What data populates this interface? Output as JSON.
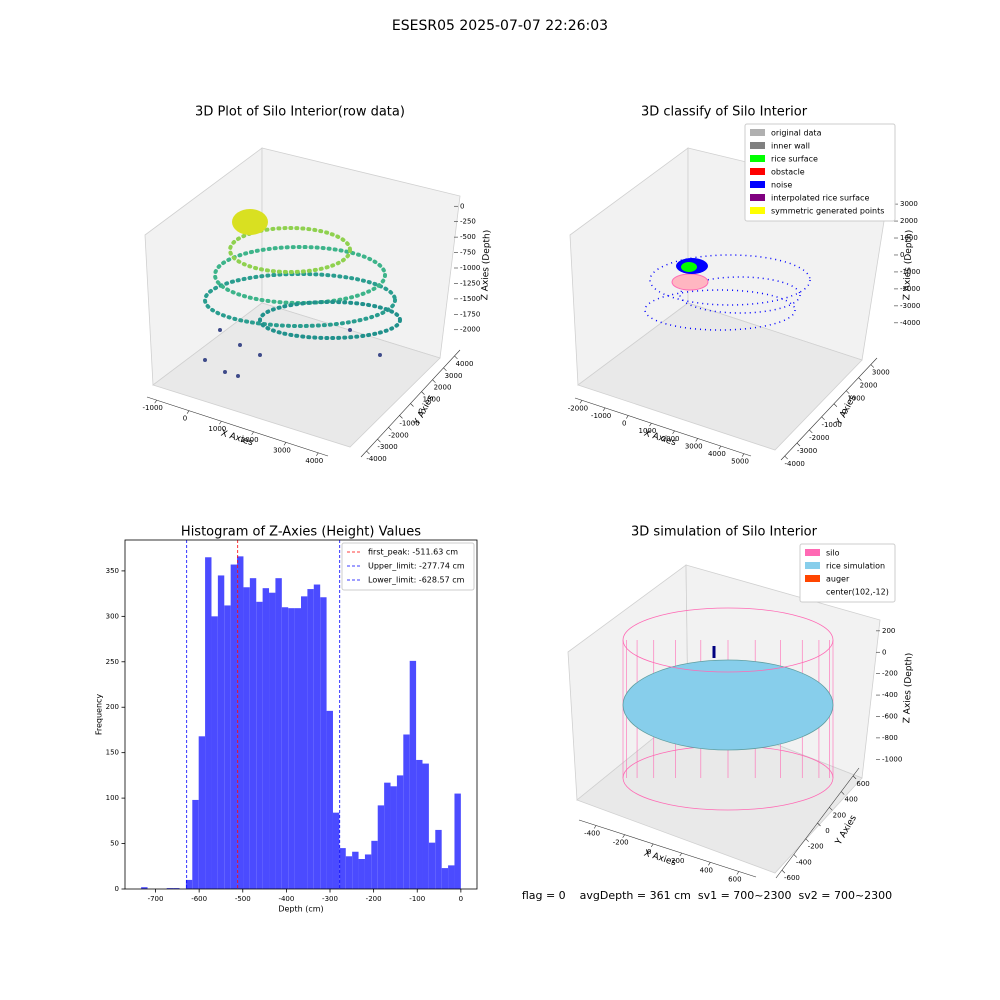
{
  "suptitle": "ESESR05 2025-07-07 22:26:03",
  "footer": "flag = 0    avgDepth = 361 cm  sv1 = 700~2300  sv2 = 700~2300",
  "chart_data": [
    {
      "type": "scatter3d",
      "title": "3D Plot of Silo Interior(row data)",
      "xlabel": "X Axies",
      "ylabel": "Y Axies",
      "zlabel": "Z Axies (Depth)",
      "xlim": [
        -1300,
        4300
      ],
      "xticks": [
        -1000,
        0,
        1000,
        2000,
        3000,
        4000
      ],
      "ylim": [
        -4500,
        4500
      ],
      "yticks": [
        -4000,
        -3000,
        -2000,
        -1000,
        0,
        1000,
        2000,
        3000,
        4000
      ],
      "zlim": [
        -2150,
        150
      ],
      "zticks": [
        -2000,
        -1750,
        -1500,
        -1250,
        -1000,
        -750,
        -500,
        -250,
        0
      ]
    },
    {
      "type": "scatter3d",
      "title": "3D classify of Silo Interior",
      "xlabel": "X Axies",
      "ylabel": "Y Axies",
      "zlabel": "Z Axies (Depth)",
      "xlim": [
        -2300,
        5300
      ],
      "xticks": [
        -2000,
        -1000,
        0,
        1000,
        2000,
        3000,
        4000,
        5000
      ],
      "ylim": [
        -4300,
        3500
      ],
      "yticks": [
        -4000,
        -3000,
        -2000,
        -1000,
        0,
        1000,
        2000,
        3000
      ],
      "zlim": [
        -4600,
        3300
      ],
      "zticks": [
        -4000,
        -3000,
        -2000,
        -1000,
        0,
        1000,
        2000,
        3000
      ],
      "legend": [
        {
          "name": "original data",
          "color": "#b0b0b0"
        },
        {
          "name": "inner wall",
          "color": "#808080"
        },
        {
          "name": "rice surface",
          "color": "#00ff00"
        },
        {
          "name": "obstacle",
          "color": "#ff0000"
        },
        {
          "name": "noise",
          "color": "#0000ff"
        },
        {
          "name": "interpolated rice surface",
          "color": "#800080"
        },
        {
          "name": "symmetric generated points",
          "color": "#ffff00"
        }
      ]
    },
    {
      "type": "histogram",
      "title": "Histogram of Z-Axies (Height) Values",
      "xlabel": "Depth (cm)",
      "ylabel": "Frequency",
      "color": "#4b4bff",
      "bins": [
        -733,
        -718.34,
        -703.68,
        -689.02,
        -674.36,
        -659.7,
        -645.04,
        -630.38,
        -615.72,
        -601.06,
        -586.4,
        -571.74,
        -557.08,
        -542.42,
        -527.76,
        -513.1,
        -498.44,
        -483.78,
        -469.12,
        -454.46,
        -439.8,
        -425.14,
        -410.48,
        -395.82,
        -381.16,
        -366.5,
        -351.84,
        -337.18,
        -322.52,
        -307.86,
        -293.2,
        -278.54,
        -263.88,
        -249.22,
        -234.56,
        -219.9,
        -205.24,
        -190.58,
        -175.92,
        -161.26,
        -146.6,
        -131.94,
        -117.28,
        -102.62,
        -87.96,
        -73.3,
        -58.64,
        -43.98,
        -29.32,
        -14.66,
        0
      ],
      "values": [
        2,
        0,
        0,
        0,
        1,
        1,
        0,
        10,
        98,
        168,
        365,
        300,
        345,
        312,
        357,
        366,
        332,
        342,
        316,
        331,
        326,
        342,
        310,
        309,
        309,
        322,
        330,
        335,
        321,
        196,
        84,
        45,
        36,
        41,
        33,
        38,
        53,
        92,
        117,
        113,
        125,
        170,
        251,
        142,
        138,
        51,
        65,
        23,
        26,
        105
      ],
      "xlim": [
        -770,
        37
      ],
      "xticks": [
        -700,
        -600,
        -500,
        -400,
        -300,
        -200,
        -100,
        0
      ],
      "ylim": [
        0,
        384
      ],
      "yticks": [
        0,
        50,
        100,
        150,
        200,
        250,
        300,
        350
      ],
      "vlines": [
        {
          "name": "first_peak: -511.63 cm",
          "value": -511.63,
          "color": "#ff0000"
        },
        {
          "name": "Upper_limit: -277.74 cm",
          "value": -277.74,
          "color": "#0000ff"
        },
        {
          "name": "Lower_limit: -628.57 cm",
          "value": -628.57,
          "color": "#0000ff"
        }
      ],
      "legend": "upper right"
    },
    {
      "type": "surface3d",
      "title": "3D simulation of Silo Interior",
      "xlabel": "X Axies",
      "ylabel": "Y Axies",
      "zlabel": "Z Axies (Depth)",
      "xlim": [
        -520,
        720
      ],
      "xticks": [
        -400,
        -200,
        0,
        200,
        400,
        600
      ],
      "ylim": [
        -700,
        700
      ],
      "yticks": [
        -600,
        -400,
        -200,
        0,
        200,
        400,
        600
      ],
      "zlim": [
        -1100,
        320
      ],
      "zticks": [
        -1000,
        -800,
        -600,
        -400,
        -200,
        0,
        200
      ],
      "legend": [
        {
          "name": "silo",
          "color": "#ff69b4"
        },
        {
          "name": "rice simulation",
          "color": "#87ceeb"
        },
        {
          "name": "auger",
          "color": "#ff4500"
        },
        {
          "name": "center(102,-12)"
        }
      ]
    }
  ]
}
